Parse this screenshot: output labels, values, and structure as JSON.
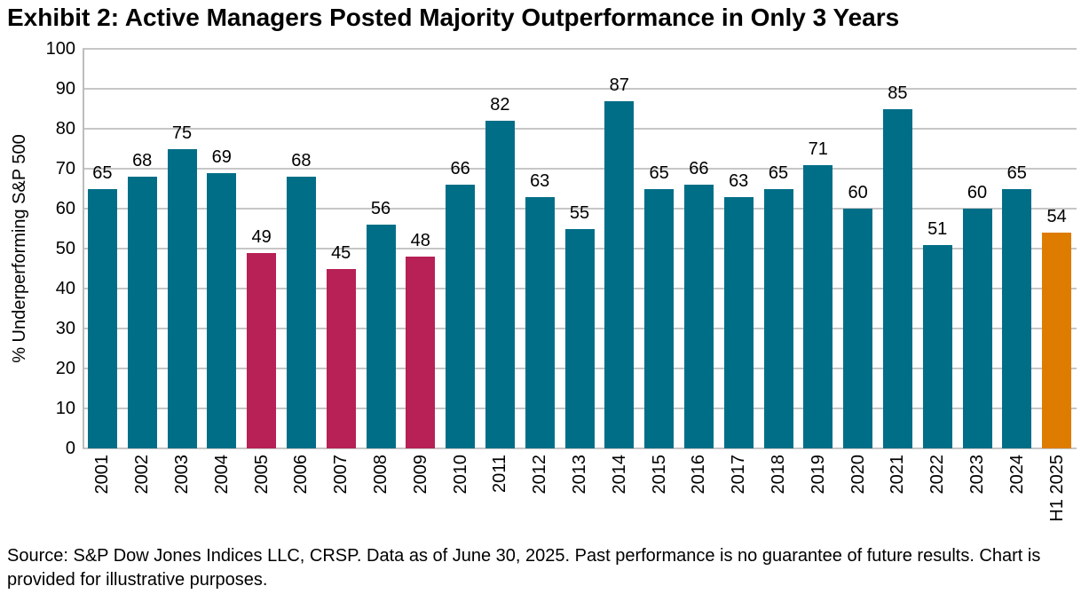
{
  "title": "Exhibit 2: Active Managers Posted Majority Outperformance in Only 3 Years",
  "chart_data": {
    "type": "bar",
    "categories": [
      "2001",
      "2002",
      "2003",
      "2004",
      "2005",
      "2006",
      "2007",
      "2008",
      "2009",
      "2010",
      "2011",
      "2012",
      "2013",
      "2014",
      "2015",
      "2016",
      "2017",
      "2018",
      "2019",
      "2020",
      "2021",
      "2022",
      "2023",
      "2024",
      "H1 2025"
    ],
    "values": [
      65,
      68,
      75,
      69,
      49,
      68,
      45,
      56,
      48,
      66,
      82,
      63,
      55,
      87,
      65,
      66,
      63,
      65,
      71,
      60,
      85,
      51,
      60,
      65,
      54
    ],
    "bar_color_keys": [
      "teal",
      "teal",
      "teal",
      "teal",
      "crimson",
      "teal",
      "crimson",
      "teal",
      "crimson",
      "teal",
      "teal",
      "teal",
      "teal",
      "teal",
      "teal",
      "teal",
      "teal",
      "teal",
      "teal",
      "teal",
      "teal",
      "teal",
      "teal",
      "teal",
      "orange"
    ],
    "colors": {
      "teal": "#006E87",
      "crimson": "#B72155",
      "orange": "#DE7C00"
    },
    "title": "Exhibit 2: Active Managers Posted Majority Outperformance in Only 3 Years",
    "xlabel": "",
    "ylabel": "% Underperforming S&P 500",
    "ylim": [
      0,
      100
    ],
    "ytick_step": 10,
    "yticks": [
      0,
      10,
      20,
      30,
      40,
      50,
      60,
      70,
      80,
      90,
      100
    ],
    "grid": true,
    "legend": "none",
    "data_labels": true
  },
  "source_note": "Source: S&P Dow Jones Indices LLC, CRSP. Data as of June 30, 2025. Past performance is no guarantee of future results. Chart is provided for illustrative purposes."
}
